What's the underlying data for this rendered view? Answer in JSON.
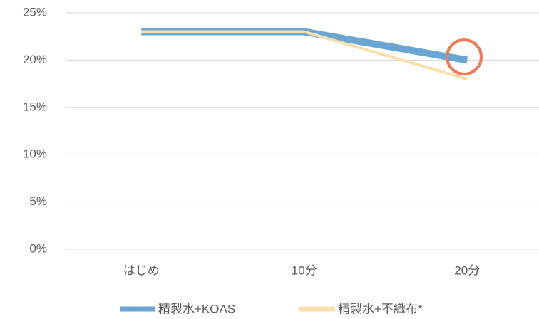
{
  "chart_data": {
    "type": "line",
    "categories": [
      "はじめ",
      "10分",
      "20分"
    ],
    "series": [
      {
        "name": "精製水+KOAS",
        "color": "#6aa6d4",
        "values": [
          23,
          23,
          20
        ]
      },
      {
        "name": "精製水+不織布*",
        "color": "#fbdfa8",
        "values": [
          23,
          23,
          18
        ]
      }
    ],
    "ylim": [
      0,
      25
    ],
    "yticks": [
      {
        "value": 0,
        "label": "0%"
      },
      {
        "value": 5,
        "label": "5%"
      },
      {
        "value": 10,
        "label": "10%"
      },
      {
        "value": 15,
        "label": "15%"
      },
      {
        "value": 20,
        "label": "20%"
      },
      {
        "value": 25,
        "label": "25%"
      }
    ],
    "grid": true,
    "legend": "bottom"
  }
}
